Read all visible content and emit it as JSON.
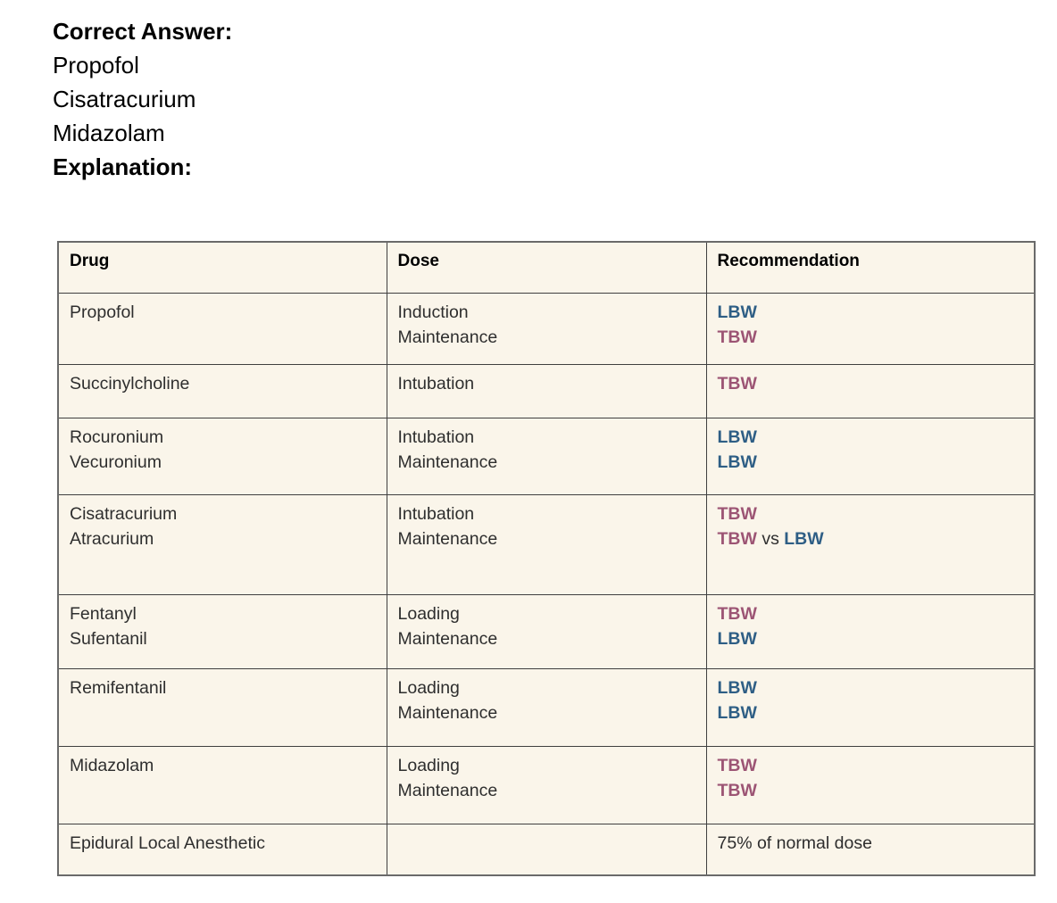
{
  "answer_block": {
    "label": "Correct Answer:",
    "answers": [
      "Propofol",
      "Cisatracurium",
      "Midazolam"
    ],
    "explanation_label": "Explanation:"
  },
  "colors": {
    "lbw_blue": "#2E5E85",
    "tbw_maroon": "#9C5474",
    "table_background": "#FAF5EA"
  },
  "table": {
    "headers": [
      {
        "key": "drug",
        "label": "Drug"
      },
      {
        "key": "dose",
        "label": "Dose"
      },
      {
        "key": "recommendation",
        "label": "Recommendation"
      }
    ],
    "rows": [
      {
        "drug_lines": [
          "Propofol"
        ],
        "dose_lines": [
          "Induction",
          "Maintenance"
        ],
        "rec_lines": [
          [
            {
              "text": "LBW",
              "style": "lbw"
            }
          ],
          [
            {
              "text": "TBW",
              "style": "tbw"
            }
          ]
        ]
      },
      {
        "drug_lines": [
          "Succinylcholine"
        ],
        "dose_lines": [
          "Intubation"
        ],
        "rec_lines": [
          [
            {
              "text": "TBW",
              "style": "tbw"
            }
          ]
        ]
      },
      {
        "drug_lines": [
          "Rocuronium",
          "Vecuronium"
        ],
        "dose_lines": [
          "Intubation",
          "Maintenance"
        ],
        "rec_lines": [
          [
            {
              "text": "LBW",
              "style": "lbw"
            }
          ],
          [
            {
              "text": "LBW",
              "style": "lbw"
            }
          ]
        ]
      },
      {
        "drug_lines": [
          "Cisatracurium",
          "Atracurium"
        ],
        "dose_lines": [
          "Intubation",
          "Maintenance"
        ],
        "rec_lines": [
          [
            {
              "text": "TBW",
              "style": "tbw"
            }
          ],
          [
            {
              "text": "TBW",
              "style": "tbw"
            },
            {
              "text": " vs ",
              "style": "plain"
            },
            {
              "text": "LBW",
              "style": "lbw"
            }
          ]
        ]
      },
      {
        "drug_lines": [
          "Fentanyl",
          "Sufentanil"
        ],
        "dose_lines": [
          "Loading",
          "Maintenance"
        ],
        "rec_lines": [
          [
            {
              "text": "TBW",
              "style": "tbw"
            }
          ],
          [
            {
              "text": "LBW",
              "style": "lbw"
            }
          ]
        ]
      },
      {
        "drug_lines": [
          "Remifentanil"
        ],
        "dose_lines": [
          "Loading",
          "Maintenance"
        ],
        "rec_lines": [
          [
            {
              "text": "LBW",
              "style": "lbw"
            }
          ],
          [
            {
              "text": "LBW",
              "style": "lbw"
            }
          ]
        ]
      },
      {
        "drug_lines": [
          "Midazolam"
        ],
        "dose_lines": [
          "Loading",
          "Maintenance"
        ],
        "rec_lines": [
          [
            {
              "text": "TBW",
              "style": "tbw"
            }
          ],
          [
            {
              "text": "TBW",
              "style": "tbw"
            }
          ]
        ]
      },
      {
        "drug_lines": [
          "Epidural Local Anesthetic"
        ],
        "dose_lines": [],
        "rec_lines": [
          [
            {
              "text": "75% of normal dose",
              "style": "plain"
            }
          ]
        ]
      }
    ]
  }
}
